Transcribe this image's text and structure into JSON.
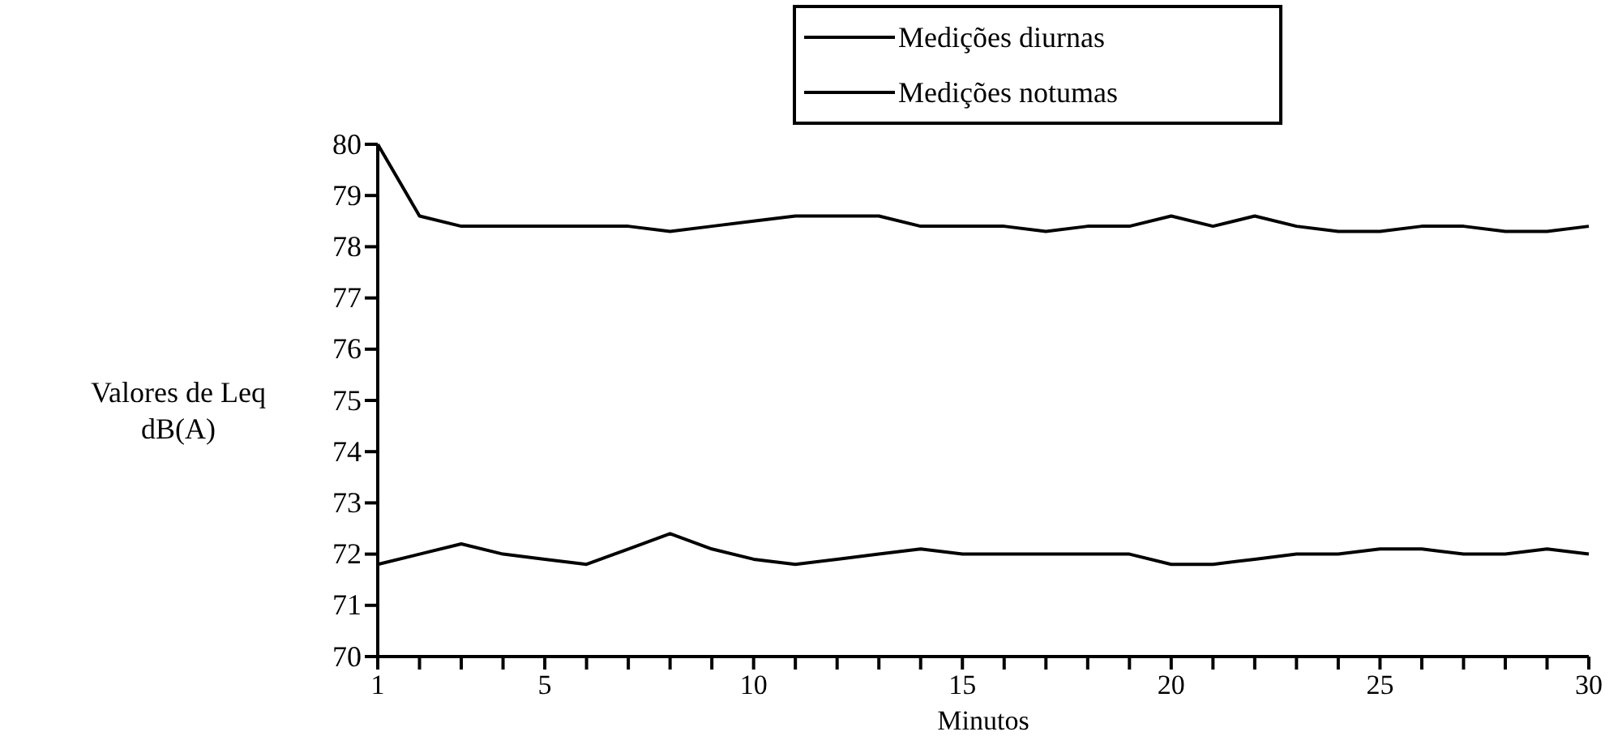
{
  "chart_data": {
    "type": "line",
    "xlabel": "Minutos",
    "ylabel": "Valores de Leq\ndB(A)",
    "x": [
      1,
      2,
      3,
      4,
      5,
      6,
      7,
      8,
      9,
      10,
      11,
      12,
      13,
      14,
      15,
      16,
      17,
      18,
      19,
      20,
      21,
      22,
      23,
      24,
      25,
      26,
      27,
      28,
      29,
      30
    ],
    "series": [
      {
        "name": "Medições diurnas",
        "color": "#000000",
        "values": [
          80,
          78.6,
          78.4,
          78.4,
          78.4,
          78.4,
          78.4,
          78.3,
          78.4,
          78.5,
          78.6,
          78.6,
          78.6,
          78.4,
          78.4,
          78.4,
          78.3,
          78.4,
          78.4,
          78.6,
          78.4,
          78.6,
          78.4,
          78.3,
          78.3,
          78.4,
          78.4,
          78.3,
          78.3,
          78.4
        ]
      },
      {
        "name": "Medições notumas",
        "color": "#000000",
        "values": [
          71.8,
          72,
          72.2,
          72,
          71.9,
          71.8,
          72.1,
          72.4,
          72.1,
          71.9,
          71.8,
          71.9,
          72,
          72.1,
          72,
          72,
          72,
          72,
          72,
          71.8,
          71.8,
          71.9,
          72,
          72,
          72.1,
          72.1,
          72,
          72,
          72.1,
          72
        ]
      }
    ],
    "xlim": [
      1,
      30
    ],
    "xticks": [
      1,
      {
        "value": 2,
        "label": null
      },
      {
        "value": 3,
        "label": null
      },
      {
        "value": 4,
        "label": null
      },
      5,
      {
        "value": 6,
        "label": null
      },
      {
        "value": 7,
        "label": null
      },
      {
        "value": 8,
        "label": null
      },
      {
        "value": 9,
        "label": null
      },
      10,
      {
        "value": 11,
        "label": null
      },
      {
        "value": 12,
        "label": null
      },
      {
        "value": 13,
        "label": null
      },
      {
        "value": 14,
        "label": null
      },
      15,
      {
        "value": 16,
        "label": null
      },
      {
        "value": 17,
        "label": null
      },
      {
        "value": 18,
        "label": null
      },
      {
        "value": 19,
        "label": null
      },
      20,
      {
        "value": 21,
        "label": null
      },
      {
        "value": 22,
        "label": null
      },
      {
        "value": 23,
        "label": null
      },
      {
        "value": 24,
        "label": null
      },
      25,
      {
        "value": 26,
        "label": null
      },
      {
        "value": 27,
        "label": null
      },
      {
        "value": 28,
        "label": null
      },
      {
        "value": 29,
        "label": null
      },
      30
    ],
    "ylim": [
      70,
      80
    ],
    "yticks": [
      70,
      71,
      72,
      73,
      74,
      75,
      76,
      77,
      78,
      79,
      80
    ],
    "legend": "top",
    "grid": false,
    "marker": "none",
    "line_style": "solid"
  }
}
